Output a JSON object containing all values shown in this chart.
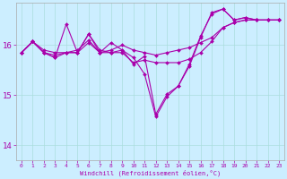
{
  "xlabel": "Windchill (Refroidissement éolien,°C)",
  "bg_color": "#cceeff",
  "line_color": "#aa00aa",
  "ylim": [
    13.7,
    16.85
  ],
  "xlim": [
    -0.5,
    23.5
  ],
  "yticks": [
    14,
    15,
    16
  ],
  "xticks": [
    0,
    1,
    2,
    3,
    4,
    5,
    6,
    7,
    8,
    9,
    10,
    11,
    12,
    13,
    14,
    15,
    16,
    17,
    18,
    19,
    20,
    21,
    22,
    23
  ],
  "series": [
    [
      15.85,
      16.07,
      15.9,
      15.85,
      15.85,
      15.9,
      16.1,
      15.85,
      15.9,
      16.0,
      15.9,
      15.85,
      15.8,
      15.85,
      15.9,
      15.95,
      16.05,
      16.15,
      16.35,
      16.45,
      16.5,
      16.5,
      16.5,
      16.5
    ],
    [
      15.85,
      16.07,
      15.85,
      15.8,
      15.85,
      15.85,
      16.05,
      15.85,
      15.85,
      15.85,
      15.65,
      15.7,
      15.65,
      15.65,
      15.65,
      15.72,
      15.85,
      16.07,
      16.35,
      16.45,
      16.5,
      16.5,
      16.5,
      16.5
    ],
    [
      15.85,
      16.07,
      15.85,
      15.75,
      15.85,
      15.85,
      16.22,
      15.9,
      15.85,
      15.9,
      15.62,
      15.78,
      14.62,
      15.02,
      15.18,
      15.62,
      16.18,
      16.62,
      16.72,
      16.5,
      16.55,
      16.5,
      16.5,
      16.5
    ],
    [
      15.85,
      16.07,
      15.85,
      15.75,
      16.42,
      15.85,
      16.22,
      15.85,
      16.05,
      15.9,
      15.75,
      15.42,
      14.57,
      14.97,
      15.18,
      15.58,
      16.15,
      16.65,
      16.72,
      16.5,
      16.55,
      16.5,
      16.5,
      16.5
    ]
  ]
}
